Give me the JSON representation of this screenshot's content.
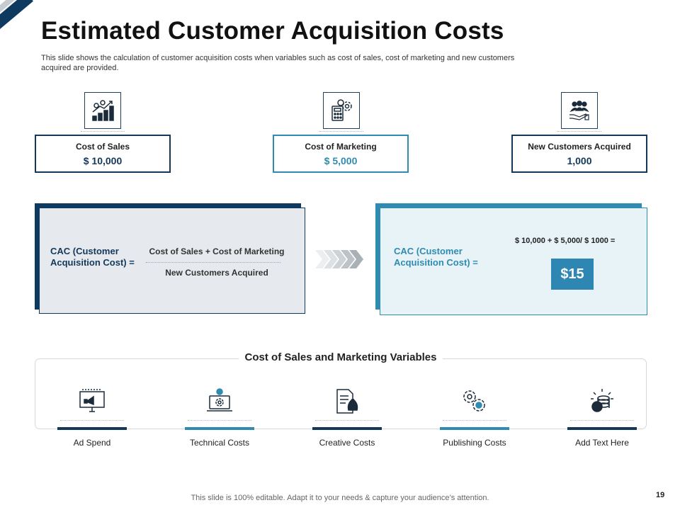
{
  "header": {
    "title": "Estimated Customer Acquisition Costs",
    "subtitle": "This slide shows the calculation of customer acquisition costs when variables such as cost of sales, cost of marketing and new customers acquired are provided."
  },
  "metrics": [
    {
      "label": "Cost of Sales",
      "value": "$ 10,000",
      "icon": "growth-chart-icon"
    },
    {
      "label": "Cost of Marketing",
      "value": "$ 5,000",
      "icon": "calculator-gear-icon"
    },
    {
      "label": "New Customers Acquired",
      "value": "1,000",
      "icon": "customers-hand-icon"
    }
  ],
  "formula": {
    "cac_label": "CAC (Customer Acquisition Cost) =",
    "numerator": "Cost of Sales + Cost of Marketing",
    "denominator": "New Customers Acquired",
    "calculation": "$ 10,000 + $ 5,000/ $ 1000 =",
    "result": "$15"
  },
  "variables": {
    "title": "Cost of Sales and Marketing Variables",
    "items": [
      {
        "label": "Ad Spend",
        "icon": "billboard-megaphone-icon"
      },
      {
        "label": "Technical Costs",
        "icon": "laptop-gear-icon"
      },
      {
        "label": "Creative Costs",
        "icon": "document-money-bag-icon"
      },
      {
        "label": "Publishing Costs",
        "icon": "gears-dollar-icon"
      },
      {
        "label": "Add Text Here",
        "icon": "coin-stack-idea-icon"
      }
    ]
  },
  "colors": {
    "navy": "#13385a",
    "teal": "#2f8bb0"
  },
  "footer": {
    "text": "This slide is 100% editable. Adapt it to your needs & capture your audience’s attention.",
    "page": "19"
  }
}
